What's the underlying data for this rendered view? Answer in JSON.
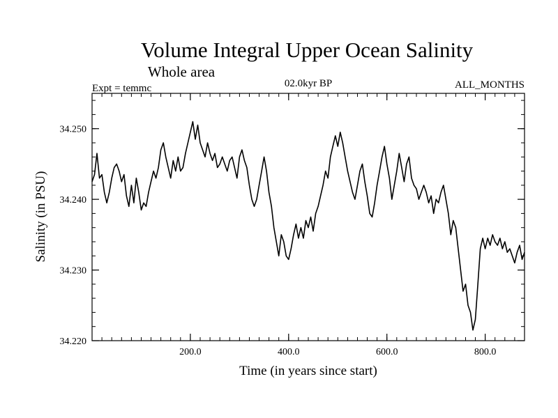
{
  "chart_data": {
    "type": "line",
    "title": "Volume Integral Upper Ocean Salinity",
    "subtitle": "Whole area",
    "left_label": "Expt = temmc",
    "center_label": "02.0kyr BP",
    "right_label": "ALL_MONTHS",
    "xlabel": "Time (in years since start)",
    "ylabel": "Salinity (in PSU)",
    "xlim": [
      0,
      880
    ],
    "ylim": [
      34.22,
      34.255
    ],
    "x_ticks": [
      {
        "value": 200,
        "label": "200.0"
      },
      {
        "value": 400,
        "label": "400.0"
      },
      {
        "value": 600,
        "label": "600.0"
      },
      {
        "value": 800,
        "label": "800.0"
      }
    ],
    "y_ticks": [
      {
        "value": 34.22,
        "label": "34.220"
      },
      {
        "value": 34.23,
        "label": "34.230"
      },
      {
        "value": 34.24,
        "label": "34.240"
      },
      {
        "value": 34.25,
        "label": "34.250"
      }
    ],
    "x_minor_step": 20,
    "y_minor_step": 0.002,
    "grid": false,
    "series": [
      {
        "name": "Salinity",
        "x": [
          0,
          5,
          10,
          15,
          20,
          25,
          30,
          35,
          40,
          45,
          50,
          55,
          60,
          65,
          70,
          75,
          80,
          85,
          90,
          95,
          100,
          105,
          110,
          115,
          120,
          125,
          130,
          135,
          140,
          145,
          150,
          155,
          160,
          165,
          170,
          175,
          180,
          185,
          190,
          195,
          200,
          205,
          210,
          215,
          220,
          225,
          230,
          235,
          240,
          245,
          250,
          255,
          260,
          265,
          270,
          275,
          280,
          285,
          290,
          295,
          300,
          305,
          310,
          315,
          320,
          325,
          330,
          335,
          340,
          345,
          350,
          355,
          360,
          365,
          370,
          375,
          380,
          385,
          390,
          395,
          400,
          405,
          410,
          415,
          420,
          425,
          430,
          435,
          440,
          445,
          450,
          455,
          460,
          465,
          470,
          475,
          480,
          485,
          490,
          495,
          500,
          505,
          510,
          515,
          520,
          525,
          530,
          535,
          540,
          545,
          550,
          555,
          560,
          565,
          570,
          575,
          580,
          585,
          590,
          595,
          600,
          605,
          610,
          615,
          620,
          625,
          630,
          635,
          640,
          645,
          650,
          655,
          660,
          665,
          670,
          675,
          680,
          685,
          690,
          695,
          700,
          705,
          710,
          715,
          720,
          725,
          730,
          735,
          740,
          745,
          750,
          755,
          760,
          765,
          770,
          775,
          780,
          785,
          790,
          795,
          800,
          805,
          810,
          815,
          820,
          825,
          830,
          835,
          840,
          845,
          850,
          855,
          860,
          865,
          870,
          875,
          880
        ],
        "values": [
          34.2425,
          34.2435,
          34.2465,
          34.243,
          34.2435,
          34.241,
          34.2395,
          34.241,
          34.243,
          34.2445,
          34.245,
          34.244,
          34.2425,
          34.2435,
          34.2405,
          34.239,
          34.242,
          34.2395,
          34.243,
          34.241,
          34.2385,
          34.2395,
          34.239,
          34.241,
          34.2425,
          34.244,
          34.243,
          34.2445,
          34.247,
          34.248,
          34.246,
          34.2445,
          34.243,
          34.2455,
          34.244,
          34.246,
          34.244,
          34.2445,
          34.2465,
          34.248,
          34.2495,
          34.251,
          34.2485,
          34.2505,
          34.248,
          34.247,
          34.246,
          34.248,
          34.2465,
          34.2455,
          34.2465,
          34.2445,
          34.245,
          34.246,
          34.245,
          34.244,
          34.2455,
          34.246,
          34.2445,
          34.243,
          34.246,
          34.247,
          34.2455,
          34.2445,
          34.242,
          34.24,
          34.239,
          34.24,
          34.242,
          34.244,
          34.246,
          34.244,
          34.241,
          34.239,
          34.236,
          34.234,
          34.232,
          34.235,
          34.234,
          34.232,
          34.2315,
          34.233,
          34.235,
          34.2365,
          34.2345,
          34.236,
          34.2345,
          34.237,
          34.236,
          34.2375,
          34.2355,
          34.238,
          34.239,
          34.2405,
          34.242,
          34.244,
          34.243,
          34.246,
          34.2475,
          34.249,
          34.2475,
          34.2495,
          34.248,
          34.246,
          34.244,
          34.2425,
          34.241,
          34.24,
          34.242,
          34.244,
          34.245,
          34.2425,
          34.2405,
          34.238,
          34.2375,
          34.2395,
          34.242,
          34.244,
          34.246,
          34.2475,
          34.245,
          34.243,
          34.24,
          34.242,
          34.244,
          34.2465,
          34.2445,
          34.2425,
          34.245,
          34.246,
          34.243,
          34.242,
          34.2415,
          34.24,
          34.241,
          34.242,
          34.241,
          34.2395,
          34.2405,
          34.238,
          34.24,
          34.2395,
          34.241,
          34.242,
          34.24,
          34.238,
          34.235,
          34.237,
          34.236,
          34.233,
          34.23,
          34.227,
          34.228,
          34.225,
          34.224,
          34.2215,
          34.223,
          34.228,
          34.233,
          34.2345,
          34.233,
          34.2345,
          34.2335,
          34.235,
          34.234,
          34.2335,
          34.2345,
          34.233,
          34.234,
          34.2325,
          34.233,
          34.232,
          34.231,
          34.2325,
          34.2335,
          34.2315,
          34.2325
        ]
      }
    ]
  }
}
